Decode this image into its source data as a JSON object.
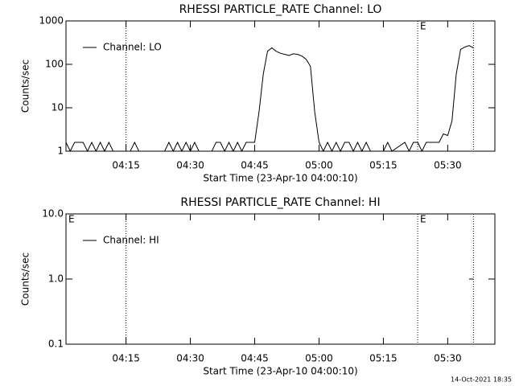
{
  "chart_data": [
    {
      "type": "line",
      "title": "RHESSI PARTICLE_RATE Channel: LO",
      "xlabel": "Start Time (23-Apr-10 04:00:10)",
      "ylabel": "Counts/sec",
      "log_y": true,
      "ylim": [
        1,
        1000
      ],
      "yticks": [
        1,
        10,
        100,
        1000
      ],
      "xlim": [
        "04:01",
        "05:41"
      ],
      "xticks": [
        "04:15",
        "04:30",
        "04:45",
        "05:00",
        "05:15",
        "05:30"
      ],
      "legend": "upper left",
      "markers": [
        {
          "x": "04:15"
        },
        {
          "x": "05:23",
          "label": "E"
        },
        {
          "x": "05:36"
        }
      ],
      "x": [
        "04:01",
        "04:02",
        "04:03",
        "04:04",
        "04:05",
        "04:06",
        "04:07",
        "04:08",
        "04:09",
        "04:10",
        "04:11",
        "04:12",
        "04:13",
        "04:16",
        "04:17",
        "04:18",
        "04:24",
        "04:25",
        "04:26",
        "04:27",
        "04:28",
        "04:29",
        "04:30",
        "04:31",
        "04:32",
        "04:33",
        "04:35",
        "04:36",
        "04:37",
        "04:38",
        "04:39",
        "04:40",
        "04:41",
        "04:42",
        "04:43",
        "04:44",
        "04:45",
        "04:46",
        "04:47",
        "04:48",
        "04:49",
        "04:50",
        "04:51",
        "04:52",
        "04:53",
        "04:54",
        "04:55",
        "04:56",
        "04:57",
        "04:58",
        "04:59",
        "05:00",
        "05:01",
        "05:02",
        "05:03",
        "05:04",
        "05:05",
        "05:06",
        "05:07",
        "05:08",
        "05:09",
        "05:10",
        "05:11",
        "05:12",
        "05:13",
        "05:15",
        "05:16",
        "05:17",
        "05:20",
        "05:21",
        "05:22",
        "05:23",
        "05:24",
        "05:25",
        "05:26",
        "05:27",
        "05:28",
        "05:29",
        "05:30",
        "05:31",
        "05:32",
        "05:33",
        "05:34",
        "05:35",
        "05:36"
      ],
      "series": [
        {
          "name": "Channel: LO",
          "color": "#000000",
          "values": [
            1.6,
            1,
            1.6,
            1.6,
            1.6,
            1,
            1.6,
            1,
            1.6,
            1,
            1.6,
            1,
            1,
            1,
            1.6,
            1,
            1,
            1.6,
            1,
            1.6,
            1,
            1.6,
            1,
            1.6,
            1,
            1,
            1,
            1.6,
            1.6,
            1,
            1.6,
            1,
            1.6,
            1,
            1.6,
            1.6,
            1.6,
            8,
            60,
            200,
            240,
            200,
            180,
            170,
            160,
            175,
            170,
            155,
            130,
            90,
            8,
            1.6,
            1,
            1.6,
            1,
            1.6,
            1,
            1.6,
            1.6,
            1,
            1.6,
            1,
            1.6,
            1,
            1,
            1,
            1.6,
            1,
            1.6,
            1,
            1.6,
            1.6,
            1,
            1.6,
            1.6,
            1.6,
            1.6,
            2.5,
            2.3,
            5,
            60,
            220,
            250,
            270,
            240
          ]
        }
      ]
    },
    {
      "type": "line",
      "title": "RHESSI PARTICLE_RATE Channel: HI",
      "xlabel": "Start Time (23-Apr-10 04:00:10)",
      "ylabel": "Counts/sec",
      "log_y": true,
      "ylim": [
        0.1,
        10
      ],
      "yticks": [
        0.1,
        {
          "value": 1,
          "label": "1.0"
        },
        {
          "value": 10,
          "label": "10.0"
        }
      ],
      "xlim": [
        "04:01",
        "05:41"
      ],
      "xticks": [
        "04:15",
        "04:30",
        "04:45",
        "05:00",
        "05:15",
        "05:30"
      ],
      "legend": "upper left",
      "markers": [
        {
          "x": "04:01",
          "label": "E"
        },
        {
          "x": "04:15"
        },
        {
          "x": "05:23",
          "label": "E"
        },
        {
          "x": "05:36"
        }
      ],
      "x": [
        "05:35",
        "05:36"
      ],
      "series": [
        {
          "name": "Channel: HI",
          "color": "#000000",
          "values": [
            1,
            1
          ]
        }
      ]
    }
  ],
  "footer": "14-Oct-2021 18:35"
}
